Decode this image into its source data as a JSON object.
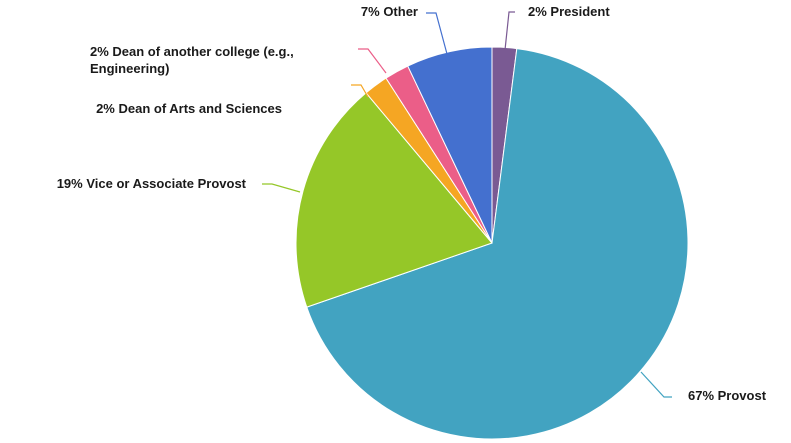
{
  "chart_data": {
    "type": "pie",
    "title": "",
    "start": "top, clockwise",
    "slices": [
      {
        "label": "President",
        "value": 2,
        "color": "#7a5a93",
        "text": "2% President"
      },
      {
        "label": "Provost",
        "value": 67,
        "color": "#42a3c1",
        "text": "67% Provost"
      },
      {
        "label": "Vice or Associate Provost",
        "value": 19,
        "color": "#95c728",
        "text": "19% Vice or Associate Provost"
      },
      {
        "label": "Dean of Arts and Sciences",
        "value": 2,
        "color": "#f5a623",
        "text": "2% Dean of Arts and Sciences"
      },
      {
        "label": "Dean of another college (e.g., Engineering)",
        "value": 2,
        "color": "#eb5e88",
        "text": "2% Dean of another college (e.g., Engineering)",
        "text_lines": [
          "2% Dean of another college (e.g.,",
          "Engineering)"
        ]
      },
      {
        "label": "Other",
        "value": 7,
        "color": "#4470cf",
        "text": "7% Other"
      }
    ]
  }
}
